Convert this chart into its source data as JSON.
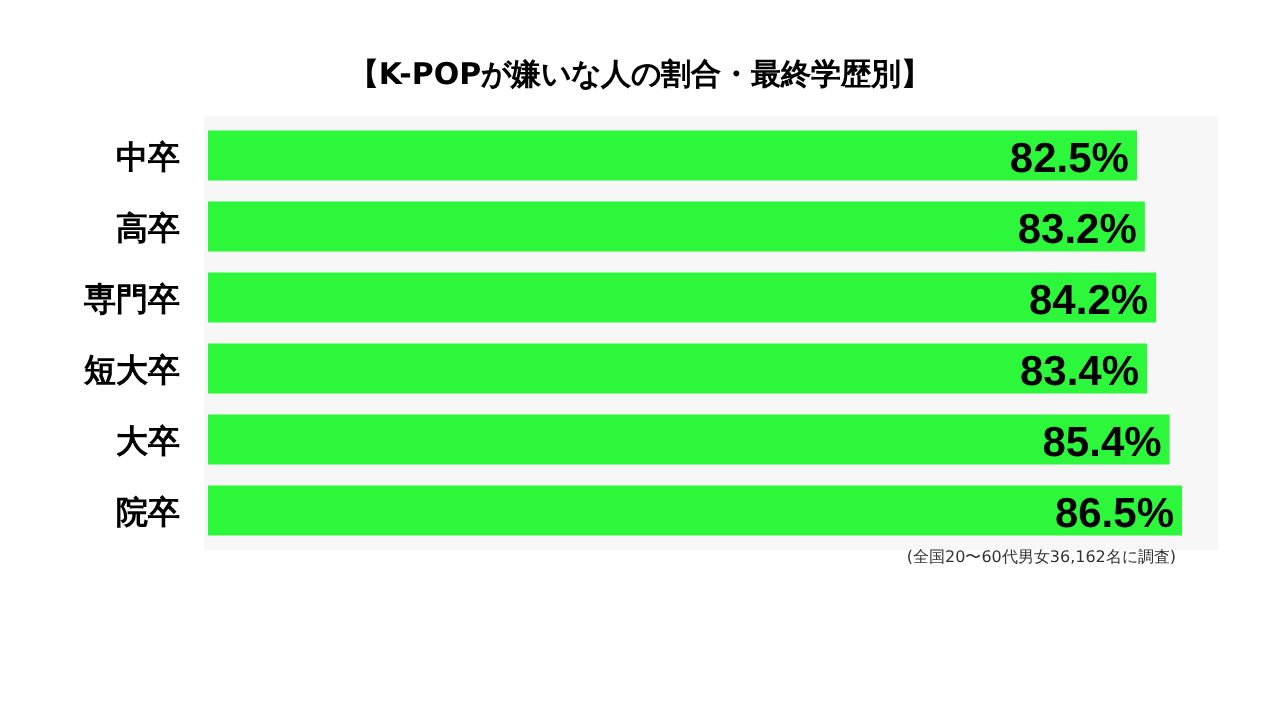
{
  "chart_data": {
    "type": "bar",
    "orientation": "horizontal",
    "title": "【K-POPが嫌いな人の割合・最終学歴別】",
    "categories": [
      "中卒",
      "高卒",
      "専門卒",
      "短大卒",
      "大卒",
      "院卒"
    ],
    "values": [
      82.5,
      83.2,
      84.2,
      83.4,
      85.4,
      86.5
    ],
    "value_labels": [
      "82.5%",
      "83.2%",
      "84.2%",
      "83.4%",
      "85.4%",
      "86.5%"
    ],
    "color": "#2cf73a",
    "annotations": [
      "(全国20〜60代男女36,162名に調査)"
    ]
  }
}
